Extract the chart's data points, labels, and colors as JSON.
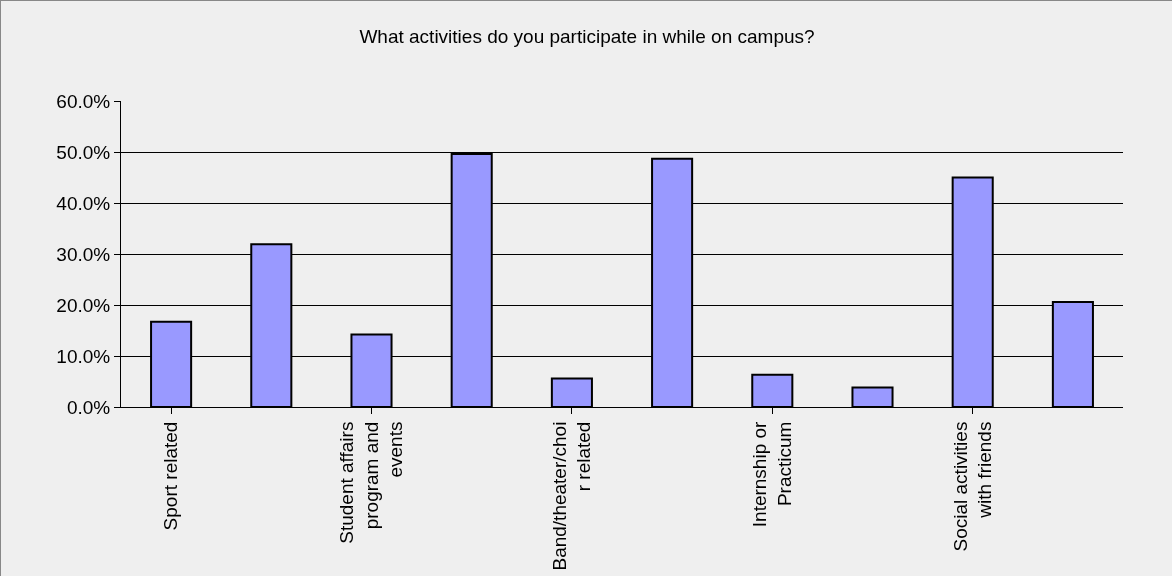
{
  "chart_data": {
    "type": "bar",
    "title": "What activities do you participate in while on campus?",
    "categories": [
      "Sport related",
      null,
      "Student affairs program and events",
      null,
      "Band/theater/choir related",
      null,
      "Internship or Practicum",
      null,
      "Social activities with friends",
      null
    ],
    "values": [
      16.7,
      31.9,
      14.2,
      49.6,
      5.6,
      48.7,
      6.3,
      3.8,
      45.0,
      20.6
    ],
    "color": "#9999ff",
    "ylim": [
      0,
      60
    ],
    "yticks": [
      {
        "value": 0,
        "label": "0.0%"
      },
      {
        "value": 10,
        "label": "10.0%"
      },
      {
        "value": 20,
        "label": "20.0%"
      },
      {
        "value": 30,
        "label": "30.0%"
      },
      {
        "value": 40,
        "label": "40.0%"
      },
      {
        "value": 50,
        "label": "50.0%"
      },
      {
        "value": 60,
        "label": "60.0%"
      }
    ],
    "grid": "y"
  }
}
